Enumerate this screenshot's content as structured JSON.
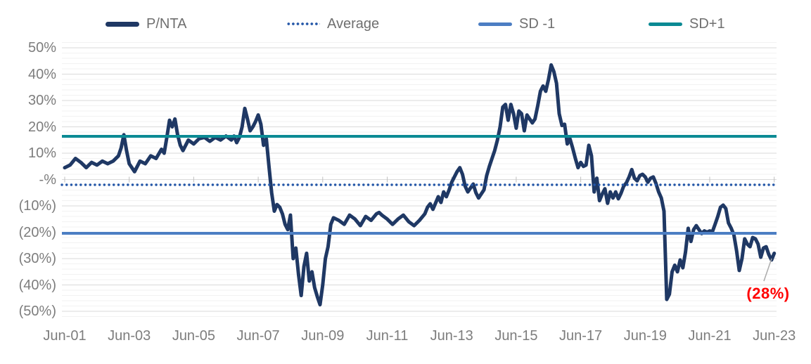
{
  "chart": {
    "legend": [
      {
        "label": "P/NTA",
        "color": "#1f3864",
        "style": "thick-line"
      },
      {
        "label": "Average",
        "color": "#2457a8",
        "style": "dotted-line"
      },
      {
        "label": "SD -1",
        "color": "#4c7ec3",
        "style": "line"
      },
      {
        "label": "SD+1",
        "color": "#0b8a94",
        "style": "line"
      }
    ],
    "annotation": {
      "text": "(28%)",
      "color": "#ff0000"
    }
  },
  "chart_data": {
    "type": "line",
    "title": "",
    "xlabel": "",
    "ylabel": "",
    "x_axis": {
      "unit": "months since Jun-2001",
      "tick_labels": [
        "Jun-01",
        "Jun-03",
        "Jun-05",
        "Jun-07",
        "Jun-09",
        "Jun-11",
        "Jun-13",
        "Jun-15",
        "Jun-17",
        "Jun-19",
        "Jun-21",
        "Jun-23"
      ],
      "tick_month_indices": [
        0,
        24,
        48,
        72,
        96,
        120,
        144,
        168,
        192,
        216,
        240,
        264
      ]
    },
    "y_axis": {
      "tick_labels": [
        "50%",
        "40%",
        "30%",
        "20%",
        "10%",
        "-%",
        "(10%)",
        "(20%)",
        "(30%)",
        "(40%)",
        "(50%)"
      ],
      "tick_values": [
        50,
        40,
        30,
        20,
        10,
        0,
        -10,
        -20,
        -30,
        -40,
        -50
      ],
      "ylim": [
        -52,
        52
      ],
      "format": "percent, negatives shown in parentheses"
    },
    "grid": {
      "major_every": 10,
      "minor_every": 2,
      "vertical_gridlines": false
    },
    "legend_position": "top",
    "series": [
      {
        "name": "P/NTA",
        "type": "line",
        "color": "#1f3864",
        "line_width": 5,
        "points_format": "[month_index_from_Jun-2001, premium_discount_percent]",
        "points": [
          [
            0,
            4.5
          ],
          [
            2,
            5.5
          ],
          [
            4,
            8
          ],
          [
            6,
            6.5
          ],
          [
            8,
            4.5
          ],
          [
            10,
            6.5
          ],
          [
            12,
            5.5
          ],
          [
            14,
            7
          ],
          [
            16,
            6
          ],
          [
            18,
            7
          ],
          [
            20,
            9
          ],
          [
            21,
            12
          ],
          [
            22,
            17
          ],
          [
            23,
            11
          ],
          [
            24,
            6
          ],
          [
            26,
            3
          ],
          [
            28,
            7
          ],
          [
            30,
            6
          ],
          [
            32,
            9
          ],
          [
            34,
            8
          ],
          [
            36,
            11.5
          ],
          [
            37,
            10
          ],
          [
            38,
            16
          ],
          [
            39,
            22.5
          ],
          [
            40,
            20
          ],
          [
            41,
            23
          ],
          [
            42,
            17
          ],
          [
            43,
            13
          ],
          [
            44,
            11
          ],
          [
            46,
            15
          ],
          [
            48,
            13.5
          ],
          [
            50,
            15.5
          ],
          [
            52,
            16
          ],
          [
            54,
            14.5
          ],
          [
            56,
            16
          ],
          [
            58,
            15
          ],
          [
            60,
            16.5
          ],
          [
            62,
            15
          ],
          [
            63,
            16.5
          ],
          [
            64,
            14
          ],
          [
            65,
            16
          ],
          [
            66,
            20
          ],
          [
            67,
            27
          ],
          [
            68,
            23
          ],
          [
            69,
            18.5
          ],
          [
            70,
            20
          ],
          [
            71,
            22
          ],
          [
            72,
            24.5
          ],
          [
            73,
            21
          ],
          [
            74,
            13
          ],
          [
            75,
            15.5
          ],
          [
            76,
            5
          ],
          [
            77,
            -5
          ],
          [
            78,
            -12
          ],
          [
            79,
            -9.5
          ],
          [
            80,
            -10.5
          ],
          [
            81,
            -13
          ],
          [
            82,
            -17
          ],
          [
            83,
            -19
          ],
          [
            84,
            -13.5
          ],
          [
            85,
            -30
          ],
          [
            86,
            -26
          ],
          [
            87,
            -36
          ],
          [
            88,
            -44
          ],
          [
            89,
            -33
          ],
          [
            90,
            -28
          ],
          [
            91,
            -38.5
          ],
          [
            92,
            -35
          ],
          [
            93,
            -41
          ],
          [
            94,
            -44.5
          ],
          [
            95,
            -47.5
          ],
          [
            96,
            -40
          ],
          [
            97,
            -30
          ],
          [
            98,
            -25.5
          ],
          [
            99,
            -17
          ],
          [
            100,
            -14.5
          ],
          [
            102,
            -15.5
          ],
          [
            104,
            -17
          ],
          [
            106,
            -13.5
          ],
          [
            108,
            -15
          ],
          [
            110,
            -17.5
          ],
          [
            112,
            -14
          ],
          [
            114,
            -15.5
          ],
          [
            116,
            -13
          ],
          [
            117,
            -12.5
          ],
          [
            118,
            -13.5
          ],
          [
            120,
            -15
          ],
          [
            122,
            -17
          ],
          [
            124,
            -15
          ],
          [
            126,
            -13.5
          ],
          [
            128,
            -16
          ],
          [
            130,
            -17.5
          ],
          [
            132,
            -15.5
          ],
          [
            134,
            -13
          ],
          [
            135,
            -10.5
          ],
          [
            136,
            -9.2
          ],
          [
            137,
            -11.3
          ],
          [
            139,
            -6.5
          ],
          [
            140,
            -8.7
          ],
          [
            141,
            -4.7
          ],
          [
            142,
            -6.5
          ],
          [
            143,
            -4
          ],
          [
            144,
            -1
          ],
          [
            145,
            1
          ],
          [
            146,
            3
          ],
          [
            147,
            4.5
          ],
          [
            148,
            2
          ],
          [
            149,
            -2.5
          ],
          [
            150,
            -4.7
          ],
          [
            152,
            -1.7
          ],
          [
            153,
            -5
          ],
          [
            154,
            -7
          ],
          [
            156,
            -3.9
          ],
          [
            157,
            1.5
          ],
          [
            158,
            5
          ],
          [
            159,
            8
          ],
          [
            160,
            11
          ],
          [
            161,
            15
          ],
          [
            162,
            20
          ],
          [
            163,
            27.5
          ],
          [
            164,
            28.5
          ],
          [
            165,
            22.5
          ],
          [
            166,
            28.5
          ],
          [
            167,
            25
          ],
          [
            168,
            19.5
          ],
          [
            169,
            26
          ],
          [
            170,
            25
          ],
          [
            171,
            18.5
          ],
          [
            172,
            24.5
          ],
          [
            173,
            23
          ],
          [
            174,
            21.5
          ],
          [
            175,
            23
          ],
          [
            176,
            28
          ],
          [
            177,
            33.5
          ],
          [
            178,
            35.5
          ],
          [
            179,
            33.5
          ],
          [
            180,
            38
          ],
          [
            181,
            43.5
          ],
          [
            182,
            41
          ],
          [
            183,
            36.5
          ],
          [
            184,
            25
          ],
          [
            185,
            20.5
          ],
          [
            186,
            21
          ],
          [
            187,
            13.5
          ],
          [
            188,
            15.5
          ],
          [
            189,
            12
          ],
          [
            190,
            8
          ],
          [
            191,
            4.5
          ],
          [
            192,
            6.5
          ],
          [
            193,
            5
          ],
          [
            194,
            5.5
          ],
          [
            195,
            13
          ],
          [
            196,
            9
          ],
          [
            197,
            -4.7
          ],
          [
            198,
            0.5
          ],
          [
            199,
            -8
          ],
          [
            200,
            -5.5
          ],
          [
            201,
            -3.5
          ],
          [
            202,
            -9
          ],
          [
            203,
            -4.7
          ],
          [
            204,
            -7
          ],
          [
            205,
            -4.7
          ],
          [
            206,
            -7.3
          ],
          [
            207,
            -5.2
          ],
          [
            208,
            -2.5
          ],
          [
            209,
            -1.2
          ],
          [
            210,
            1
          ],
          [
            211,
            3.8
          ],
          [
            212,
            0.5
          ],
          [
            213,
            -0.5
          ],
          [
            214,
            1.5
          ],
          [
            215,
            2
          ],
          [
            216,
            1
          ],
          [
            217,
            -1
          ],
          [
            218,
            0.5
          ],
          [
            219,
            1
          ],
          [
            220,
            -1.5
          ],
          [
            221,
            -4.7
          ],
          [
            222,
            -7
          ],
          [
            223,
            -12
          ],
          [
            224,
            -45.5
          ],
          [
            225,
            -43.5
          ],
          [
            226,
            -35
          ],
          [
            227,
            -32.5
          ],
          [
            228,
            -35
          ],
          [
            229,
            -30.5
          ],
          [
            230,
            -33.5
          ],
          [
            231,
            -27.5
          ],
          [
            232,
            -18.5
          ],
          [
            233,
            -23.5
          ],
          [
            234,
            -19
          ],
          [
            235,
            -17.5
          ],
          [
            236,
            -19
          ],
          [
            237,
            -20.5
          ],
          [
            238,
            -19.5
          ],
          [
            239,
            -20
          ],
          [
            240,
            -19.5
          ],
          [
            241,
            -19.8
          ],
          [
            242,
            -17
          ],
          [
            243,
            -14
          ],
          [
            244,
            -10.5
          ],
          [
            245,
            -9.7
          ],
          [
            246,
            -11
          ],
          [
            247,
            -16.5
          ],
          [
            248,
            -18.5
          ],
          [
            249,
            -21
          ],
          [
            250,
            -27
          ],
          [
            251,
            -34.5
          ],
          [
            252,
            -30
          ],
          [
            253,
            -22.5
          ],
          [
            254,
            -24.5
          ],
          [
            255,
            -25.5
          ],
          [
            256,
            -22
          ],
          [
            257,
            -22.5
          ],
          [
            258,
            -24.5
          ],
          [
            259,
            -29.5
          ],
          [
            260,
            -26
          ],
          [
            261,
            -25.5
          ],
          [
            262,
            -28.5
          ],
          [
            263,
            -30.5
          ],
          [
            264,
            -28
          ]
        ]
      },
      {
        "name": "Average",
        "type": "constant-line",
        "color": "#2457a8",
        "value": -2,
        "line_style": "dotted",
        "line_width": 3.4
      },
      {
        "name": "SD -1",
        "type": "constant-line",
        "color": "#4c7ec3",
        "value": -20.4,
        "line_style": "solid",
        "line_width": 4
      },
      {
        "name": "SD+1",
        "type": "constant-line",
        "color": "#0b8a94",
        "value": 16.4,
        "line_style": "solid",
        "line_width": 4
      }
    ],
    "annotation": {
      "text": "(28%)",
      "value": -28,
      "attached_to": "last P/NTA point (Jun-23)",
      "color": "#ff0000"
    }
  }
}
